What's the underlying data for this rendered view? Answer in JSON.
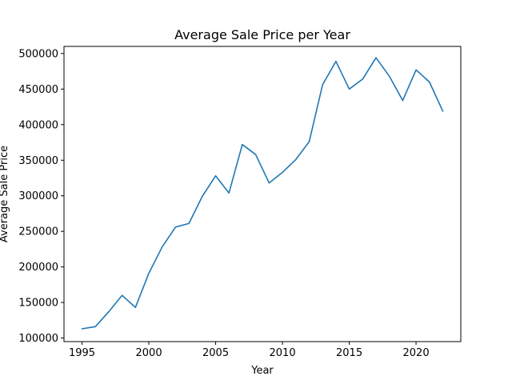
{
  "chart_data": {
    "type": "line",
    "title": "Average Sale Price per Year",
    "xlabel": "Year",
    "ylabel": "Average Sale Price",
    "xlim": [
      1993.65,
      2023.35
    ],
    "ylim": [
      95000,
      510000
    ],
    "xticks": [
      1995,
      2000,
      2005,
      2010,
      2015,
      2020
    ],
    "yticks": [
      100000,
      150000,
      200000,
      250000,
      300000,
      350000,
      400000,
      450000,
      500000
    ],
    "grid": false,
    "line_color": "#1f77b4",
    "series": [
      {
        "x": [
          1995,
          1996,
          1997,
          1998,
          1999,
          2000,
          2001,
          2002,
          2003,
          2004,
          2005,
          2006,
          2007,
          2008,
          2009,
          2010,
          2011,
          2012,
          2013,
          2014,
          2015,
          2016,
          2017,
          2018,
          2019,
          2020,
          2021,
          2022
        ],
        "y": [
          113000,
          116000,
          137000,
          160000,
          143000,
          191000,
          228000,
          256000,
          261000,
          299000,
          328000,
          304000,
          372000,
          358000,
          318000,
          333000,
          351000,
          376000,
          456000,
          489000,
          450000,
          464000,
          494000,
          468000,
          434000,
          477000,
          460000,
          419000
        ]
      }
    ]
  }
}
